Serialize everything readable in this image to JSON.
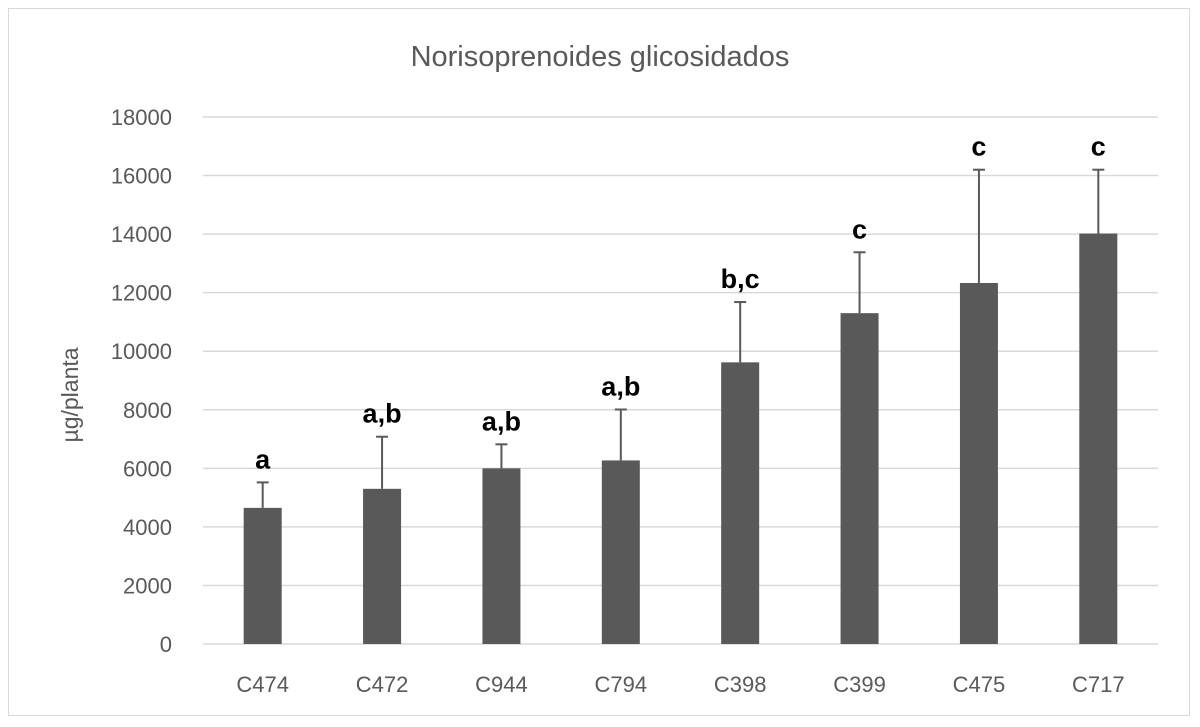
{
  "chart_data": {
    "type": "bar",
    "title": "Norisoprenoides glicosidados",
    "xlabel": "",
    "ylabel": "µg/planta",
    "ylim": [
      0,
      18000
    ],
    "yticks": [
      0,
      2000,
      4000,
      6000,
      8000,
      10000,
      12000,
      14000,
      16000,
      18000
    ],
    "grid": true,
    "categories": [
      "C474",
      "C472",
      "C944",
      "C794",
      "C398",
      "C399",
      "C475",
      "C717"
    ],
    "values": [
      4650,
      5300,
      6000,
      6270,
      9620,
      11300,
      12330,
      14020
    ],
    "error_upper": [
      5520,
      7080,
      6820,
      8010,
      11680,
      13380,
      16200,
      16200
    ],
    "annotations": [
      "a",
      "a,b",
      "a,b",
      "a,b",
      "b,c",
      "c",
      "c",
      "c"
    ],
    "colors": {
      "bar": "#595959",
      "grid": "#d9d9d9",
      "text": "#595959",
      "annotation": "#000000"
    }
  }
}
